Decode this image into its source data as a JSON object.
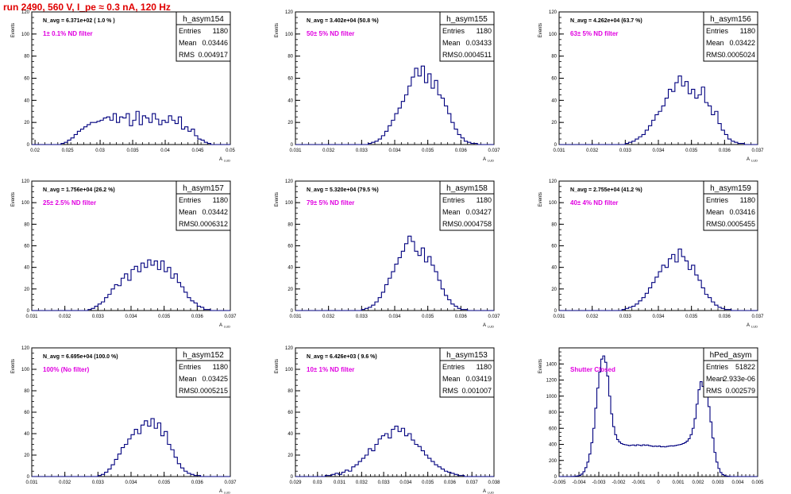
{
  "title": "run 2490,   560 V, I_pe ≈ 0.3 nA, 120 Hz",
  "colors": {
    "title": "#e00000",
    "filter_label": "#e000e0",
    "histogram_line": "#00007f",
    "axis": "#000000"
  },
  "stats_labels": {
    "entries": "Entries",
    "mean": "Mean",
    "rms": "RMS"
  },
  "chart_data": [
    {
      "type": "histogram",
      "name": "h_asym154",
      "navg": "N_avg = 6.371e+02 ( 1.0 % )",
      "filter": "1± 0.1% ND filter",
      "entries": "1180",
      "mean": "0.03446",
      "rms": "0.004917",
      "xlabel": "A",
      "xlabel_sub": "LUD",
      "ylabel": "Events",
      "xlim": [
        0.0195,
        0.05
      ],
      "ylim": [
        0,
        120
      ],
      "xticks": [
        "0.02",
        "0.025",
        "0.03",
        "0.035",
        "0.04",
        "0.045",
        "0.05"
      ],
      "yticks": [
        "0",
        "20",
        "40",
        "60",
        "80",
        "100",
        "120"
      ],
      "bin_start": 0.0195,
      "bin_width": 0.0005,
      "values": [
        0,
        0,
        0,
        0,
        0,
        0,
        0,
        0,
        0,
        1,
        2,
        4,
        6,
        9,
        12,
        14,
        16,
        18,
        20,
        20,
        21,
        22,
        24,
        25,
        22,
        28,
        20,
        25,
        24,
        28,
        17,
        22,
        30,
        18,
        26,
        24,
        20,
        28,
        23,
        18,
        22,
        20,
        26,
        22,
        19,
        25,
        14,
        16,
        12,
        14,
        8,
        5,
        4,
        2,
        1,
        0,
        0,
        0,
        0,
        0,
        0,
        0
      ]
    },
    {
      "type": "histogram",
      "name": "h_asym155",
      "navg": "N_avg = 3.402e+04 (50.8 %)",
      "filter": "50± 5% ND filter",
      "entries": "1180",
      "mean": "0.03433",
      "rms": "0.0004511",
      "xlabel": "A",
      "xlabel_sub": "LUD",
      "ylabel": "Events",
      "xlim": [
        0.031,
        0.037
      ],
      "ylim": [
        0,
        120
      ],
      "xticks": [
        "0.031",
        "0.032",
        "0.033",
        "0.034",
        "0.035",
        "0.036",
        "0.037"
      ],
      "yticks": [
        "0",
        "20",
        "40",
        "60",
        "80",
        "100",
        "120"
      ],
      "bin_start": 0.031,
      "bin_width": 0.0001,
      "values": [
        0,
        0,
        0,
        0,
        0,
        0,
        0,
        0,
        0,
        0,
        0,
        0,
        0,
        0,
        0,
        0,
        0,
        0,
        0,
        0,
        0,
        0,
        1,
        2,
        3,
        5,
        8,
        12,
        17,
        22,
        28,
        33,
        39,
        45,
        53,
        61,
        69,
        62,
        71,
        56,
        64,
        51,
        58,
        45,
        42,
        35,
        28,
        20,
        14,
        9,
        6,
        3,
        2,
        1,
        1,
        0,
        0,
        0,
        0,
        0
      ]
    },
    {
      "type": "histogram",
      "name": "h_asym156",
      "navg": "N_avg = 4.262e+04 (63.7 %)",
      "filter": "63± 5% ND filter",
      "entries": "1180",
      "mean": "0.03422",
      "rms": "0.0005024",
      "xlabel": "A",
      "xlabel_sub": "LUD",
      "ylabel": "Events",
      "xlim": [
        0.031,
        0.037
      ],
      "ylim": [
        0,
        120
      ],
      "xticks": [
        "0.031",
        "0.032",
        "0.033",
        "0.034",
        "0.035",
        "0.036",
        "0.037"
      ],
      "yticks": [
        "0",
        "20",
        "40",
        "60",
        "80",
        "100",
        "120"
      ],
      "bin_start": 0.031,
      "bin_width": 0.0001,
      "values": [
        0,
        0,
        0,
        0,
        0,
        0,
        0,
        0,
        0,
        0,
        0,
        0,
        0,
        0,
        0,
        0,
        0,
        0,
        0,
        0,
        1,
        2,
        3,
        5,
        7,
        9,
        13,
        17,
        22,
        27,
        30,
        35,
        42,
        50,
        48,
        56,
        62,
        53,
        57,
        46,
        50,
        42,
        45,
        52,
        38,
        35,
        27,
        30,
        19,
        13,
        9,
        5,
        3,
        2,
        1,
        1,
        0,
        0,
        0,
        0
      ]
    },
    {
      "type": "histogram",
      "name": "h_asym157",
      "navg": "N_avg = 1.756e+04 (26.2 %)",
      "filter": "25± 2.5% ND filter",
      "entries": "1180",
      "mean": "0.03442",
      "rms": "0.0006312",
      "xlabel": "A",
      "xlabel_sub": "LUD",
      "ylabel": "Events",
      "xlim": [
        0.031,
        0.037
      ],
      "ylim": [
        0,
        120
      ],
      "xticks": [
        "0.031",
        "0.032",
        "0.033",
        "0.034",
        "0.035",
        "0.036",
        "0.037"
      ],
      "yticks": [
        "0",
        "20",
        "40",
        "60",
        "80",
        "100",
        "120"
      ],
      "bin_start": 0.031,
      "bin_width": 0.0001,
      "values": [
        0,
        0,
        0,
        0,
        0,
        0,
        0,
        0,
        0,
        0,
        0,
        0,
        0,
        0,
        0,
        0,
        0,
        1,
        2,
        4,
        6,
        8,
        12,
        15,
        20,
        24,
        23,
        30,
        34,
        28,
        38,
        41,
        36,
        44,
        40,
        47,
        42,
        46,
        38,
        46,
        36,
        40,
        30,
        34,
        26,
        22,
        17,
        12,
        9,
        7,
        4,
        3,
        1,
        1,
        0,
        0,
        0,
        0,
        0,
        0
      ]
    },
    {
      "type": "histogram",
      "name": "h_asym158",
      "navg": "N_avg = 5.320e+04 (79.5 %)",
      "filter": "79± 5% ND filter",
      "entries": "1180",
      "mean": "0.03427",
      "rms": "0.0004758",
      "xlabel": "A",
      "xlabel_sub": "LUD",
      "ylabel": "Events",
      "xlim": [
        0.031,
        0.037
      ],
      "ylim": [
        0,
        120
      ],
      "xticks": [
        "0.031",
        "0.032",
        "0.033",
        "0.034",
        "0.035",
        "0.036",
        "0.037"
      ],
      "yticks": [
        "0",
        "20",
        "40",
        "60",
        "80",
        "100",
        "120"
      ],
      "bin_start": 0.031,
      "bin_width": 0.0001,
      "values": [
        0,
        0,
        0,
        0,
        0,
        0,
        0,
        0,
        0,
        0,
        0,
        0,
        0,
        0,
        0,
        0,
        0,
        0,
        0,
        0,
        1,
        2,
        3,
        5,
        8,
        12,
        17,
        24,
        30,
        36,
        43,
        49,
        55,
        62,
        69,
        64,
        55,
        51,
        58,
        45,
        50,
        42,
        36,
        28,
        20,
        14,
        10,
        6,
        4,
        2,
        1,
        1,
        0,
        0,
        0,
        0,
        0,
        0,
        0,
        0
      ]
    },
    {
      "type": "histogram",
      "name": "h_asym159",
      "navg": "N_avg = 2.755e+04 (41.2 %)",
      "filter": "40± 4% ND filter",
      "entries": "1180",
      "mean": "0.03416",
      "rms": "0.0005455",
      "xlabel": "A",
      "xlabel_sub": "LUD",
      "ylabel": "Events",
      "xlim": [
        0.031,
        0.037
      ],
      "ylim": [
        0,
        120
      ],
      "xticks": [
        "0.031",
        "0.032",
        "0.033",
        "0.034",
        "0.035",
        "0.036",
        "0.037"
      ],
      "yticks": [
        "0",
        "20",
        "40",
        "60",
        "80",
        "100",
        "120"
      ],
      "bin_start": 0.031,
      "bin_width": 0.0001,
      "values": [
        0,
        0,
        0,
        0,
        0,
        0,
        0,
        0,
        0,
        0,
        0,
        0,
        0,
        0,
        0,
        0,
        0,
        0,
        0,
        1,
        2,
        3,
        4,
        6,
        9,
        12,
        16,
        21,
        26,
        31,
        36,
        42,
        40,
        48,
        52,
        45,
        57,
        50,
        46,
        38,
        42,
        33,
        28,
        21,
        15,
        12,
        8,
        5,
        3,
        2,
        1,
        1,
        0,
        0,
        0,
        0,
        0,
        0,
        0,
        0
      ]
    },
    {
      "type": "histogram",
      "name": "h_asym152",
      "navg": "N_avg = 6.695e+04 (100.0 %)",
      "filter": "100% (No filter)",
      "entries": "1180",
      "mean": "0.03425",
      "rms": "0.0005215",
      "xlabel": "A",
      "xlabel_sub": "LUD",
      "ylabel": "Events",
      "xlim": [
        0.031,
        0.037
      ],
      "ylim": [
        0,
        120
      ],
      "xticks": [
        "0.031",
        "0.032",
        "0.033",
        "0.034",
        "0.035",
        "0.036",
        "0.037"
      ],
      "yticks": [
        "0",
        "20",
        "40",
        "60",
        "80",
        "100",
        "120"
      ],
      "bin_start": 0.031,
      "bin_width": 0.0001,
      "values": [
        0,
        0,
        0,
        0,
        0,
        0,
        0,
        0,
        0,
        0,
        0,
        0,
        0,
        0,
        0,
        0,
        0,
        0,
        0,
        0,
        1,
        2,
        4,
        7,
        11,
        16,
        21,
        27,
        30,
        35,
        39,
        44,
        40,
        48,
        52,
        47,
        54,
        45,
        50,
        38,
        42,
        30,
        25,
        18,
        12,
        8,
        5,
        3,
        2,
        1,
        1,
        0,
        0,
        0,
        0,
        0,
        0,
        0,
        0,
        0
      ]
    },
    {
      "type": "histogram",
      "name": "h_asym153",
      "navg": "N_avg = 6.426e+03 ( 9.6 %)",
      "filter": "10± 1% ND filter",
      "entries": "1180",
      "mean": "0.03419",
      "rms": "0.001007",
      "xlabel": "A",
      "xlabel_sub": "LUD",
      "ylabel": "Events",
      "xlim": [
        0.029,
        0.038
      ],
      "ylim": [
        0,
        120
      ],
      "xticks": [
        "0.029",
        "0.03",
        "0.031",
        "0.032",
        "0.033",
        "0.034",
        "0.035",
        "0.036",
        "0.037",
        "0.038"
      ],
      "yticks": [
        "0",
        "20",
        "40",
        "60",
        "80",
        "100",
        "120"
      ],
      "bin_start": 0.029,
      "bin_width": 0.00015,
      "values": [
        0,
        0,
        0,
        0,
        0,
        0,
        0,
        0,
        0,
        1,
        1,
        2,
        3,
        2,
        4,
        6,
        5,
        9,
        11,
        14,
        17,
        20,
        26,
        24,
        30,
        35,
        38,
        40,
        36,
        44,
        47,
        42,
        45,
        38,
        40,
        34,
        30,
        28,
        24,
        20,
        17,
        14,
        11,
        9,
        7,
        5,
        4,
        3,
        2,
        1,
        1,
        0,
        0,
        0,
        0,
        0,
        0,
        0,
        0,
        0
      ]
    },
    {
      "type": "histogram",
      "name": "hPed_asym",
      "label": "Shutter Closed",
      "entries": "51822",
      "mean": "2.933e-06",
      "rms": "0.002579",
      "ylabel": "Events",
      "xlim": [
        -0.005,
        0.005
      ],
      "ylim": [
        0,
        1600
      ],
      "xticks": [
        "-0.005",
        "-0.004",
        "-0.003",
        "-0.002",
        "-0.001",
        "0",
        "0.001",
        "0.002",
        "0.003",
        "0.004",
        "0.005"
      ],
      "yticks": [
        "0",
        "200",
        "400",
        "600",
        "800",
        "1000",
        "1200",
        "1400"
      ],
      "bin_start": -0.005,
      "bin_width": 0.0001,
      "values": [
        0,
        0,
        0,
        0,
        0,
        0,
        1,
        2,
        4,
        8,
        15,
        30,
        60,
        110,
        180,
        280,
        420,
        600,
        850,
        1100,
        1300,
        1460,
        1500,
        1420,
        1250,
        1000,
        780,
        620,
        520,
        460,
        430,
        410,
        400,
        395,
        390,
        385,
        390,
        392,
        385,
        395,
        390,
        385,
        395,
        388,
        392,
        385,
        380,
        375,
        378,
        375,
        380,
        370,
        372,
        368,
        375,
        378,
        382,
        380,
        385,
        390,
        395,
        400,
        410,
        420,
        440,
        470,
        520,
        600,
        720,
        900,
        1080,
        1180,
        1120,
        1050,
        1010,
        870,
        680,
        480,
        300,
        180,
        100,
        50,
        25,
        12,
        6,
        3,
        1,
        0,
        0,
        0,
        0,
        0,
        0,
        0,
        0,
        0,
        0,
        0,
        0,
        0
      ]
    }
  ]
}
